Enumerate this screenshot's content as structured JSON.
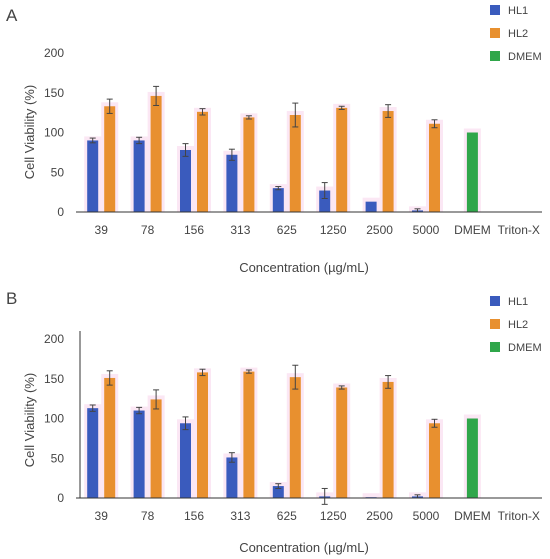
{
  "chart_data": [
    {
      "panel": "A",
      "type": "bar",
      "categories": [
        "39",
        "78",
        "156",
        "313",
        "625",
        "1250",
        "2500",
        "5000",
        "DMEM",
        "Triton-X"
      ],
      "xlabel": "Concentration (µg/mL)",
      "ylabel": "Cell Viability (%)",
      "ylim": [
        0,
        200
      ],
      "yticks": [
        0,
        50,
        100,
        150,
        200
      ],
      "grid": false,
      "legend_position": "top-right",
      "series": [
        {
          "name": "HL1",
          "color": "#3a5bbd",
          "values": [
            90,
            90,
            78,
            72,
            30,
            27,
            13,
            2,
            null,
            null
          ],
          "errors": [
            3,
            4,
            8,
            7,
            2,
            10,
            0,
            2,
            null,
            null
          ]
        },
        {
          "name": "HL2",
          "color": "#e8902f",
          "values": [
            133,
            146,
            126,
            119,
            122,
            131,
            127,
            111,
            null,
            null
          ],
          "errors": [
            9,
            12,
            4,
            2,
            15,
            2,
            8,
            5,
            null,
            null
          ]
        },
        {
          "name": "DMEM",
          "color": "#2fa64a",
          "values": [
            null,
            null,
            null,
            null,
            null,
            null,
            null,
            null,
            100,
            null
          ],
          "errors": [
            null,
            null,
            null,
            null,
            null,
            null,
            null,
            null,
            0,
            null
          ]
        }
      ]
    },
    {
      "panel": "B",
      "type": "bar",
      "categories": [
        "39",
        "78",
        "156",
        "313",
        "625",
        "1250",
        "2500",
        "5000",
        "DMEM",
        "Triton-X"
      ],
      "xlabel": "Concentration (µg/mL)",
      "ylabel": "Cell Viability (%)",
      "ylim": [
        0,
        200
      ],
      "yticks": [
        0,
        50,
        100,
        150,
        200
      ],
      "grid": false,
      "legend_position": "top-right",
      "series": [
        {
          "name": "HL1",
          "color": "#3a5bbd",
          "values": [
            113,
            110,
            94,
            51,
            15,
            2,
            1,
            2,
            null,
            null
          ],
          "errors": [
            4,
            4,
            8,
            6,
            3,
            10,
            0,
            2,
            null,
            null
          ]
        },
        {
          "name": "HL2",
          "color": "#e8902f",
          "values": [
            151,
            124,
            158,
            159,
            152,
            139,
            146,
            94,
            null,
            null
          ],
          "errors": [
            9,
            12,
            4,
            2,
            15,
            2,
            8,
            5,
            null,
            null
          ]
        },
        {
          "name": "DMEM",
          "color": "#2fa64a",
          "values": [
            null,
            null,
            null,
            null,
            null,
            null,
            null,
            null,
            100,
            null
          ],
          "errors": [
            null,
            null,
            null,
            null,
            null,
            null,
            null,
            null,
            0,
            null
          ]
        }
      ]
    }
  ],
  "colors": {
    "axis": "#333333",
    "text": "#444444",
    "error_bar": "#444444",
    "bar_halo": "#f7c9e6"
  }
}
